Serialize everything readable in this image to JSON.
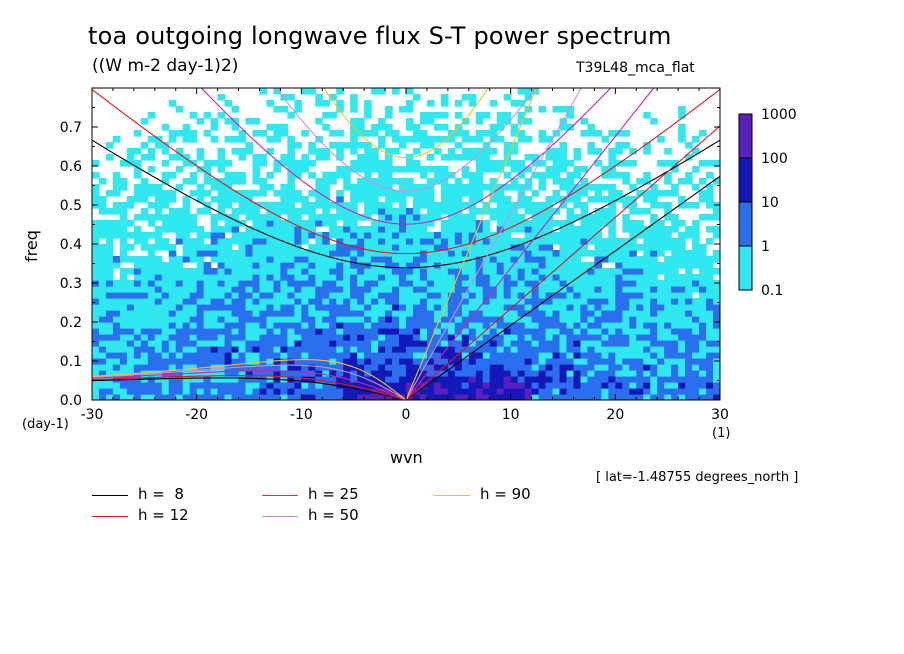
{
  "title": "toa outgoing longwave flux S-T power spectrum",
  "subtitle": "((W m-2 day-1)2)",
  "run_name": "T39L48_mca_flat",
  "x_unit": "(1)",
  "y_unit": "(day-1)",
  "lat_note": "[ lat=-1.48755 degrees_north ]",
  "colorbar": {
    "labels": [
      "1000",
      "100",
      "10",
      "1",
      "0.1"
    ],
    "colors": [
      "#5a1fbf",
      "#1418b8",
      "#2a6fee",
      "#2fe8f0"
    ]
  },
  "legend": [
    {
      "label": "h =  8",
      "color": "#000000"
    },
    {
      "label": "h = 12",
      "color": "#e8141c"
    },
    {
      "label": "h = 25",
      "color": "#d21fb0"
    },
    {
      "label": "h = 50",
      "color": "#d58ad8"
    },
    {
      "label": "h = 90",
      "color": "#f4c21a"
    }
  ],
  "chart_data": {
    "type": "heatmap",
    "title": "toa outgoing longwave flux S-T power spectrum",
    "subtitle": "((W m-2 day-1)2)",
    "xlabel": "wvn",
    "ylabel": "freq",
    "xlim": [
      -30,
      30
    ],
    "ylim": [
      0,
      0.8
    ],
    "x_ticks": [
      -30,
      -20,
      -10,
      0,
      10,
      20,
      30
    ],
    "x_tick_labels": [
      "-30",
      "-20",
      "-10",
      "0",
      "10",
      "20",
      "30"
    ],
    "y_ticks": [
      0,
      0.1,
      0.2,
      0.3,
      0.4,
      0.5,
      0.6,
      0.7
    ],
    "y_tick_labels": [
      "0.0",
      "0.1",
      "0.2",
      "0.3",
      "0.4",
      "0.5",
      "0.6",
      "0.7"
    ],
    "levels": [
      0.1,
      1,
      10,
      100,
      1000
    ],
    "dispersion_curves": [
      {
        "h": 8,
        "color": "#000000",
        "min_freq_at_wvn0": 0.34,
        "kelvin_freq_at_wvn30": 0.56
      },
      {
        "h": 12,
        "color": "#e8141c",
        "min_freq_at_wvn0": 0.37,
        "kelvin_freq_at_wvn30": 0.69
      },
      {
        "h": 25,
        "color": "#d21fb0",
        "min_freq_at_wvn0": 0.45
      },
      {
        "h": 50,
        "color": "#d58ad8",
        "min_freq_at_wvn0": 0.54
      },
      {
        "h": 90,
        "color": "#f4c21a",
        "min_freq_at_wvn0": 0.61
      }
    ],
    "legend_position": "bottom-left"
  }
}
